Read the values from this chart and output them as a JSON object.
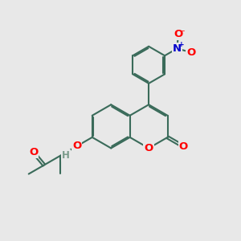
{
  "bg_color": "#e8e8e8",
  "bond_color": "#3a6b5a",
  "bond_width": 1.5,
  "dbo": 0.055,
  "atom_colors": {
    "O": "#ff0000",
    "N": "#0000cc",
    "H": "#7a9a8a",
    "C": "#3a6b5a"
  },
  "font_size": 9.5,
  "fig_size": [
    3.0,
    3.0
  ],
  "dpi": 100,
  "xlim": [
    0,
    10
  ],
  "ylim": [
    0,
    10
  ]
}
